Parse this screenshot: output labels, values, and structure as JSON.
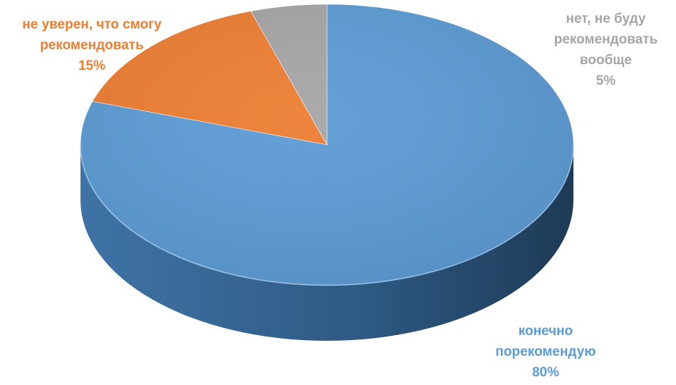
{
  "chart_data": {
    "type": "pie",
    "title": "",
    "style": "3d",
    "slices": [
      {
        "label_lines": [
          "конечно",
          "порекомендую"
        ],
        "pct_label": "80%",
        "value": 80,
        "color": "#5B9BD5"
      },
      {
        "label_lines": [
          "не уверен, что смогу",
          "рекомендовать"
        ],
        "pct_label": "15%",
        "value": 15,
        "color": "#ED7D31"
      },
      {
        "label_lines": [
          "нет, не буду",
          "рекомендовать",
          "вообще"
        ],
        "pct_label": "5%",
        "value": 5,
        "color": "#A5A5A5"
      }
    ]
  }
}
